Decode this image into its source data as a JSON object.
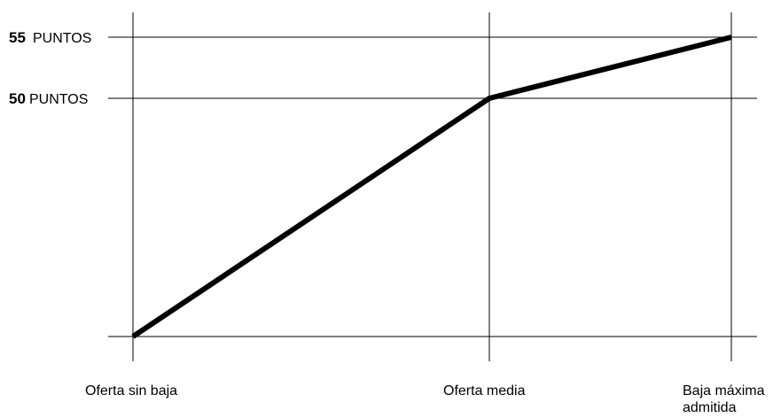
{
  "chart_data": {
    "type": "line",
    "title": "",
    "xlabel": "",
    "ylabel": "",
    "categories": [
      "Oferta sin baja",
      "Oferta media",
      "Baja máxima admitida"
    ],
    "series": [
      {
        "values": [
          0,
          50,
          55
        ]
      }
    ],
    "y_ticks": [
      {
        "value": 55,
        "number": "55",
        "unit": "PUNTOS"
      },
      {
        "value": 50,
        "number": "50",
        "unit": "PUNTOS"
      }
    ],
    "x_tick_labels": [
      [
        "Oferta sin baja"
      ],
      [
        "Oferta media"
      ],
      [
        "Baja máxima",
        "admitida"
      ]
    ],
    "ylim": [
      0,
      55
    ],
    "grid": true,
    "line_color": "#000000"
  }
}
